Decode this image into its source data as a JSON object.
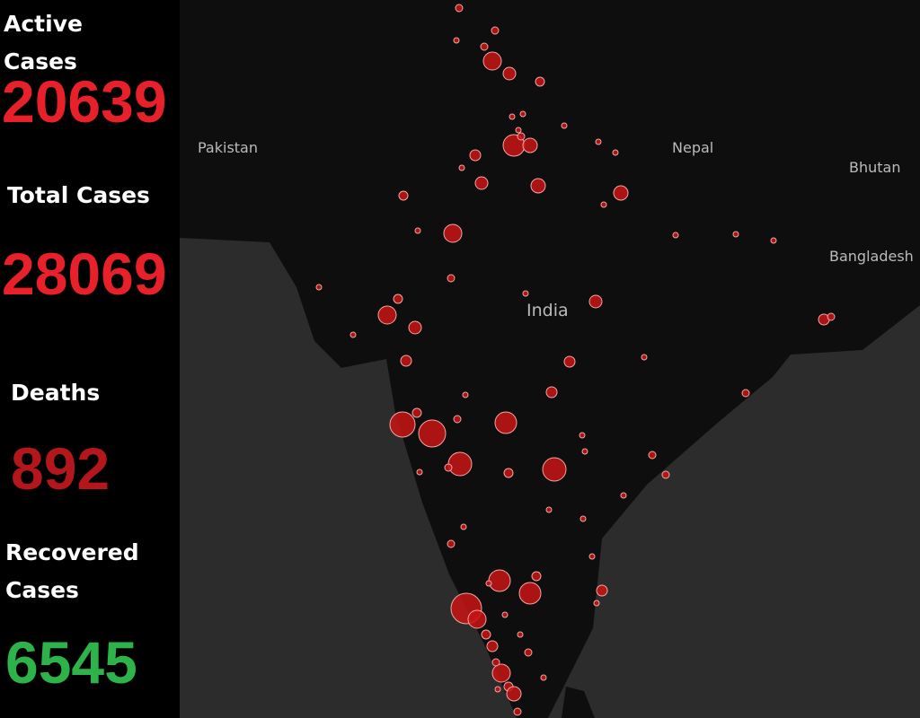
{
  "stats": [
    {
      "label": "Active Cases",
      "value": 20639
    },
    {
      "label": "Total Cases",
      "value": 28069
    },
    {
      "label": "Deaths",
      "value": 892
    },
    {
      "label": "Recovered Cases",
      "value": 6545
    }
  ],
  "map": {
    "labels": [
      "Pakistan",
      "Nepal",
      "Bhutan",
      "Bangladesh",
      "India"
    ]
  }
}
